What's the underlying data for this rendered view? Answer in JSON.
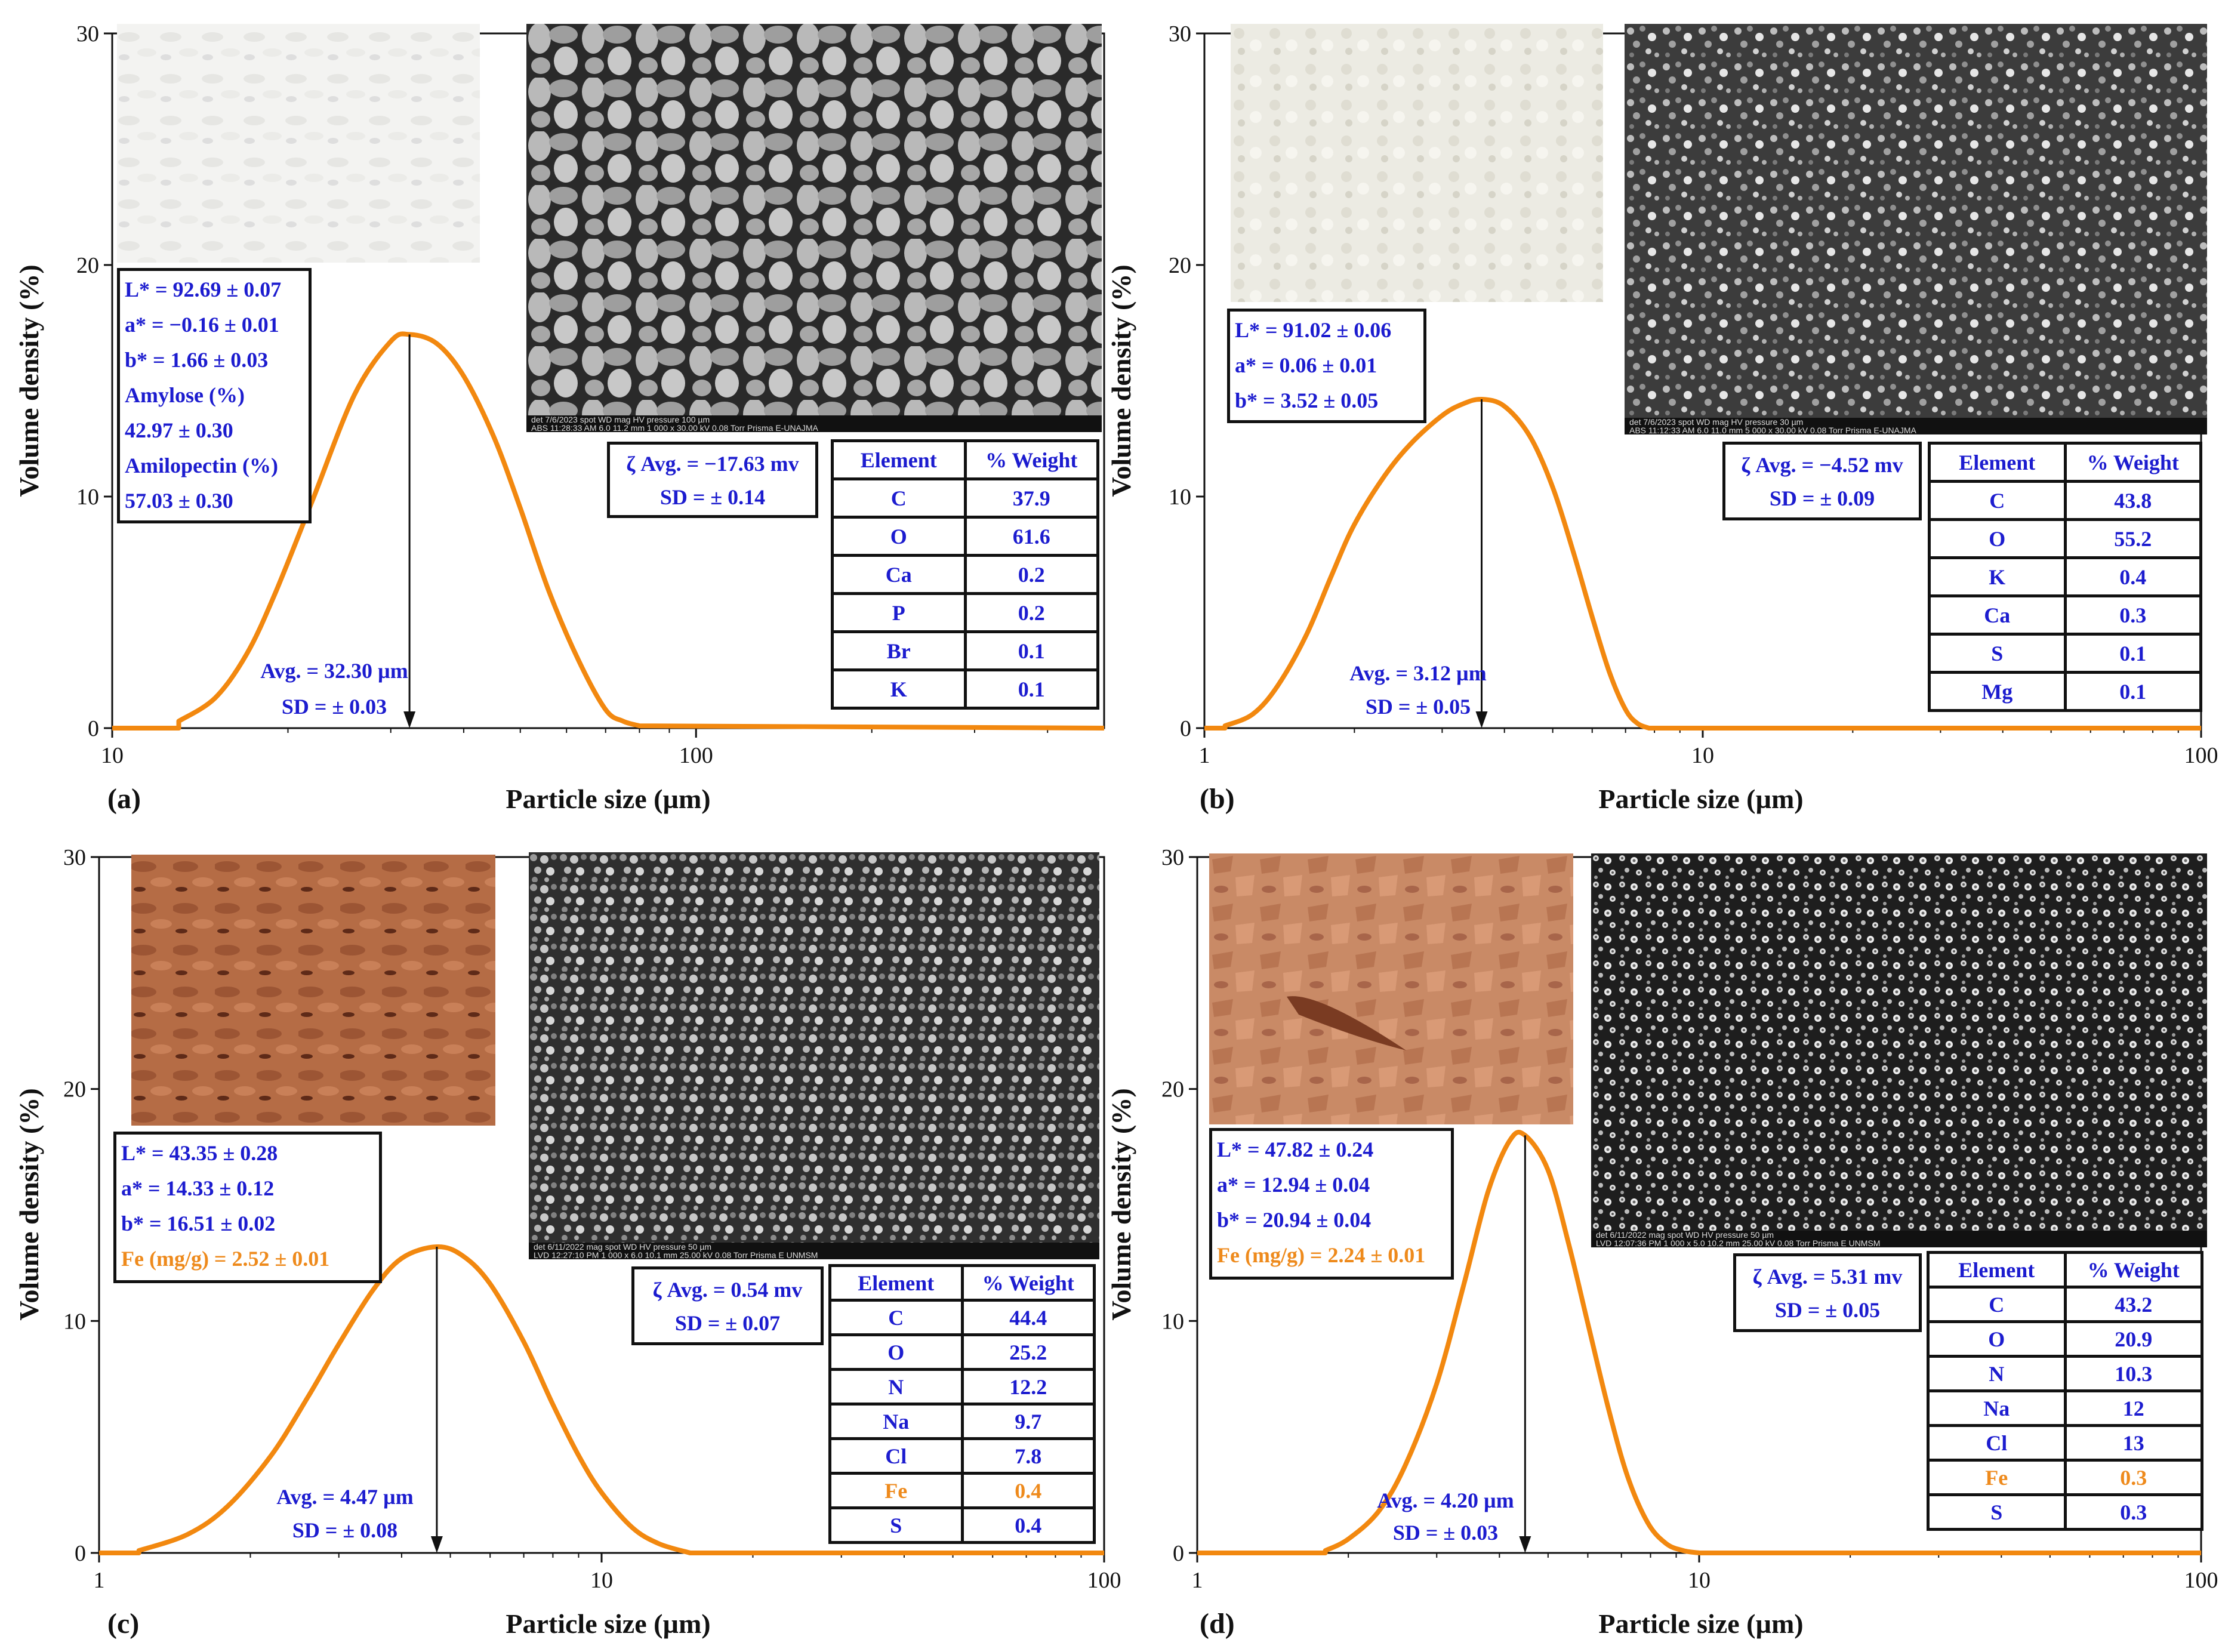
{
  "colors": {
    "curve": "#f2880f",
    "blue_text": "#1c1ccf",
    "orange_text": "#ee8a1c",
    "axis": "#111111"
  },
  "axis_labels": {
    "x": "Particle size (µm)",
    "y": "Volume density (%)"
  },
  "chart_data": [
    {
      "type": "line",
      "panel": "(a)",
      "x_scale": "log",
      "xlim": [
        10,
        500
      ],
      "ylim": [
        0,
        30
      ],
      "x_ticks": [
        "10",
        "100"
      ],
      "y_ticks": [
        "0",
        "10",
        "20",
        "30"
      ],
      "xlabel": "Particle size (µm)",
      "ylabel": "Volume density (%)",
      "series": [
        {
          "x": [
            13,
            15,
            17,
            19,
            22,
            26,
            30,
            32.3,
            36,
            40,
            45,
            50,
            56,
            63,
            70,
            75,
            80
          ],
          "y": [
            0.3,
            1.3,
            3.2,
            5.8,
            9.8,
            14.4,
            16.7,
            17.0,
            16.6,
            15.2,
            12.6,
            9.5,
            5.9,
            2.9,
            0.8,
            0.3,
            0.1
          ]
        }
      ],
      "avg_marker_x": 32.3,
      "annotations": {
        "avg": "Avg. = 32.30 µm",
        "sd": "SD =  ± 0.03"
      }
    },
    {
      "type": "line",
      "panel": "(b)",
      "x_scale": "log",
      "xlim": [
        1,
        100
      ],
      "ylim": [
        0,
        30
      ],
      "x_ticks": [
        "1",
        "10",
        "100"
      ],
      "y_ticks": [
        "0",
        "10",
        "20",
        "30"
      ],
      "xlabel": "Particle size (µm)",
      "ylabel": "Volume density (%)",
      "series": [
        {
          "x": [
            1.1,
            1.25,
            1.4,
            1.6,
            1.8,
            2.0,
            2.3,
            2.6,
            3.0,
            3.3,
            3.6,
            4.0,
            4.5,
            5.0,
            5.5,
            6.0,
            6.5,
            7.0,
            7.4,
            7.8
          ],
          "y": [
            0.1,
            0.6,
            1.8,
            4.0,
            6.6,
            8.8,
            10.9,
            12.3,
            13.5,
            14.0,
            14.2,
            13.9,
            12.6,
            10.4,
            7.6,
            4.8,
            2.4,
            0.8,
            0.2,
            0.0
          ]
        }
      ],
      "avg_marker_x": 3.6,
      "annotations": {
        "avg": "Avg. = 3.12 µm",
        "sd": "SD =  ± 0.05"
      }
    },
    {
      "type": "line",
      "panel": "(c)",
      "x_scale": "log",
      "xlim": [
        1,
        100
      ],
      "ylim": [
        0,
        30
      ],
      "x_ticks": [
        "1",
        "10",
        "100"
      ],
      "y_ticks": [
        "0",
        "10",
        "20",
        "30"
      ],
      "xlabel": "Particle size (µm)",
      "ylabel": "Volume density (%)",
      "series": [
        {
          "x": [
            1.2,
            1.5,
            1.8,
            2.2,
            2.6,
            3.0,
            3.5,
            4.0,
            4.7,
            5.3,
            6.0,
            7.0,
            8.0,
            9.0,
            10.0,
            11.5,
            13.0,
            15.0
          ],
          "y": [
            0.1,
            0.8,
            2.0,
            4.2,
            6.7,
            9.0,
            11.3,
            12.7,
            13.2,
            12.8,
            11.6,
            9.1,
            6.4,
            4.2,
            2.6,
            1.1,
            0.4,
            0.0
          ]
        }
      ],
      "avg_marker_x": 4.7,
      "annotations": {
        "avg": "Avg. = 4.47 µm",
        "sd": "SD =  ± 0.08"
      }
    },
    {
      "type": "line",
      "panel": "(d)",
      "x_scale": "log",
      "xlim": [
        1,
        100
      ],
      "ylim": [
        0,
        30
      ],
      "x_ticks": [
        "1",
        "10",
        "100"
      ],
      "y_ticks": [
        "0",
        "10",
        "20",
        "30"
      ],
      "xlabel": "Particle size (µm)",
      "ylabel": "Volume density (%)",
      "series": [
        {
          "x": [
            1.8,
            2.0,
            2.3,
            2.6,
            3.0,
            3.4,
            3.8,
            4.2,
            4.5,
            5.0,
            5.5,
            6.0,
            6.6,
            7.2,
            7.9,
            8.6,
            9.3,
            10.0
          ],
          "y": [
            0.1,
            0.6,
            1.8,
            3.8,
            7.3,
            11.6,
            15.6,
            17.8,
            18.0,
            16.5,
            13.3,
            9.9,
            6.2,
            3.3,
            1.3,
            0.4,
            0.1,
            0.0
          ]
        }
      ],
      "avg_marker_x": 4.5,
      "annotations": {
        "avg": "Avg. = 4.20 µm",
        "sd": "SD =  ± 0.03"
      }
    }
  ],
  "panels": [
    {
      "label": "(a)",
      "color_box": [
        {
          "text": "L*  = 92.69 ± 0.07",
          "color": "#1c1ccf"
        },
        {
          "text": "a* = −0.16 ± 0.01",
          "color": "#1c1ccf"
        },
        {
          "text": "b* = 1.66 ± 0.03",
          "color": "#1c1ccf"
        },
        {
          "text": "Amylose (%)",
          "color": "#1c1ccf"
        },
        {
          "text": "42.97 ± 0.30",
          "color": "#1c1ccf"
        },
        {
          "text": "Amilopectin (%)",
          "color": "#1c1ccf"
        },
        {
          "text": "57.03 ± 0.30",
          "color": "#1c1ccf"
        }
      ],
      "zeta": {
        "avg": "ζ Avg. = −17.63 mv",
        "sd": "SD = ± 0.14"
      },
      "table_headers": [
        "Element",
        "% Weight"
      ],
      "table_rows": [
        {
          "el": "C",
          "w": "37.9",
          "color": "#1c1ccf"
        },
        {
          "el": "O",
          "w": "61.6",
          "color": "#1c1ccf"
        },
        {
          "el": "Ca",
          "w": "0.2",
          "color": "#1c1ccf"
        },
        {
          "el": "P",
          "w": "0.2",
          "color": "#1c1ccf"
        },
        {
          "el": "Br",
          "w": "0.1",
          "color": "#1c1ccf"
        },
        {
          "el": "K",
          "w": "0.1",
          "color": "#1c1ccf"
        }
      ],
      "sem_bar": [
        "det   7/6/2023  spot WD    mag  HV      pressure                 100 µm",
        "ABS 11:28:33 AM 6.0  11.2 mm 1 000 x 30.00 kV 0.08 Torr        Prisma E-UNAJMA"
      ]
    },
    {
      "label": "(b)",
      "color_box": [
        {
          "text": "L*  = 91.02 ± 0.06",
          "color": "#1c1ccf"
        },
        {
          "text": "a* = 0.06 ± 0.01",
          "color": "#1c1ccf"
        },
        {
          "text": "b* = 3.52 ± 0.05",
          "color": "#1c1ccf"
        }
      ],
      "zeta": {
        "avg": "ζ Avg. = −4.52 mv",
        "sd": "SD = ± 0.09"
      },
      "table_headers": [
        "Element",
        "% Weight"
      ],
      "table_rows": [
        {
          "el": "C",
          "w": "43.8",
          "color": "#1c1ccf"
        },
        {
          "el": "O",
          "w": "55.2",
          "color": "#1c1ccf"
        },
        {
          "el": "K",
          "w": "0.4",
          "color": "#1c1ccf"
        },
        {
          "el": "Ca",
          "w": "0.3",
          "color": "#1c1ccf"
        },
        {
          "el": "S",
          "w": "0.1",
          "color": "#1c1ccf"
        },
        {
          "el": "Mg",
          "w": "0.1",
          "color": "#1c1ccf"
        }
      ],
      "sem_bar": [
        "det   7/6/2023  spot WD    mag  HV      pressure                 30 µm",
        "ABS 11:12:33 AM 6.0  11.0 mm 5 000 x 30.00 kV 0.08 Torr        Prisma E-UNAJMA"
      ]
    },
    {
      "label": "(c)",
      "color_box": [
        {
          "text": "L* = 43.35 ± 0.28",
          "color": "#1c1ccf"
        },
        {
          "text": "a* = 14.33 ± 0.12",
          "color": "#1c1ccf"
        },
        {
          "text": "b* = 16.51 ± 0.02",
          "color": "#1c1ccf"
        },
        {
          "text": "Fe (mg/g) = 2.52 ± 0.01",
          "color": "#ee8a1c"
        }
      ],
      "zeta": {
        "avg": "ζ Avg. = 0.54 mv",
        "sd": "SD = ± 0.07"
      },
      "table_headers": [
        "Element",
        "% Weight"
      ],
      "table_rows": [
        {
          "el": "C",
          "w": "44.4",
          "color": "#1c1ccf"
        },
        {
          "el": "O",
          "w": "25.2",
          "color": "#1c1ccf"
        },
        {
          "el": "N",
          "w": "12.2",
          "color": "#1c1ccf"
        },
        {
          "el": "Na",
          "w": "9.7",
          "color": "#1c1ccf"
        },
        {
          "el": "Cl",
          "w": "7.8",
          "color": "#1c1ccf"
        },
        {
          "el": "Fe",
          "w": "0.4",
          "color": "#ee8a1c"
        },
        {
          "el": "S",
          "w": "0.4",
          "color": "#1c1ccf"
        }
      ],
      "sem_bar": [
        "det   6/11/2022  mag    spot  WD     HV       pressure          50 µm",
        "LVD 12:27:10 PM 1 000 x  6.0   10.1 mm  25.00 kV  0.08 Torr    Prisma E  UNMSM"
      ]
    },
    {
      "label": "(d)",
      "color_box": [
        {
          "text": "L* = 47.82 ± 0.24",
          "color": "#1c1ccf"
        },
        {
          "text": "a* = 12.94 ± 0.04",
          "color": "#1c1ccf"
        },
        {
          "text": "b* = 20.94 ± 0.04",
          "color": "#1c1ccf"
        },
        {
          "text": "Fe (mg/g) = 2.24 ± 0.01",
          "color": "#ee8a1c"
        }
      ],
      "zeta": {
        "avg": "ζ Avg. = 5.31 mv",
        "sd": "SD = ± 0.05"
      },
      "table_headers": [
        "Element",
        "% Weight"
      ],
      "table_rows": [
        {
          "el": "C",
          "w": "43.2",
          "color": "#1c1ccf"
        },
        {
          "el": "O",
          "w": "20.9",
          "color": "#1c1ccf"
        },
        {
          "el": "N",
          "w": "10.3",
          "color": "#1c1ccf"
        },
        {
          "el": "Na",
          "w": "12",
          "color": "#1c1ccf"
        },
        {
          "el": "Cl",
          "w": "13",
          "color": "#1c1ccf"
        },
        {
          "el": "Fe",
          "w": "0.3",
          "color": "#ee8a1c"
        },
        {
          "el": "S",
          "w": "0.3",
          "color": "#1c1ccf"
        }
      ],
      "sem_bar": [
        "det   6/11/2022  mag    spot  WD     HV       pressure          50 µm",
        "LVD 12:07:36 PM 1 000 x  5.0   10.2 mm  25.00 kV  0.08 Torr    Prisma E  UNMSM"
      ]
    }
  ]
}
